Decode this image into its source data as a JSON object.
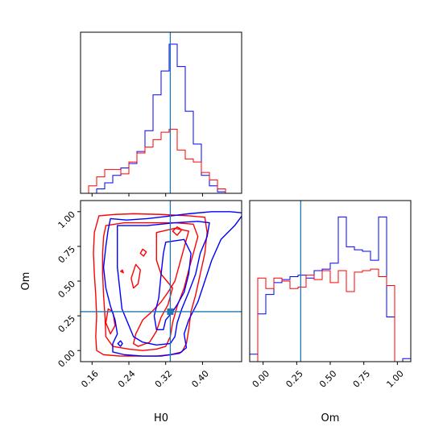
{
  "chart_data": [
    {
      "type": "histogram",
      "panel": "H0 marginal",
      "xlim": [
        0.135,
        0.485
      ],
      "ylim": [
        0,
        1.08
      ],
      "show_yticks": false,
      "truth": 0.33,
      "colors": {
        "blue": "#0000ff",
        "red": "#ff0000",
        "truth": "#1f77b4"
      },
      "bin_edges": [
        0.135,
        0.1525,
        0.17,
        0.1875,
        0.205,
        0.2225,
        0.24,
        0.2575,
        0.275,
        0.2925,
        0.31,
        0.3275,
        0.345,
        0.3625,
        0.38,
        0.3975,
        0.415,
        0.4325,
        0.45,
        0.4675,
        0.485
      ],
      "series": [
        {
          "color": "#0000ff",
          "counts": [
            0.0,
            0.0,
            0.03,
            0.07,
            0.12,
            0.17,
            0.2,
            0.28,
            0.42,
            0.66,
            0.82,
            1.0,
            0.85,
            0.55,
            0.33,
            0.12,
            0.05,
            0.01,
            0.0,
            0.0
          ]
        },
        {
          "color": "#ff0000",
          "counts": [
            0.0,
            0.05,
            0.11,
            0.16,
            0.16,
            0.13,
            0.21,
            0.27,
            0.31,
            0.36,
            0.41,
            0.43,
            0.29,
            0.23,
            0.21,
            0.14,
            0.09,
            0.03,
            0.0,
            0.0
          ]
        }
      ]
    },
    {
      "type": "contour",
      "panel": "H0 vs Om",
      "xlabel": "H0",
      "ylabel": "Om",
      "xlim": [
        0.135,
        0.485
      ],
      "ylim": [
        -0.08,
        1.08
      ],
      "xticks": [
        0.16,
        0.24,
        0.32,
        0.4
      ],
      "xtick_labels": [
        "0.16",
        "0.24",
        "0.32",
        "0.40"
      ],
      "yticks": [
        0.0,
        0.25,
        0.5,
        0.75,
        1.0
      ],
      "ytick_labels": [
        "0.00",
        "0.25",
        "0.50",
        "0.75",
        "1.00"
      ],
      "truth": {
        "x": 0.33,
        "y": 0.28
      },
      "blue_contours": [
        [
          [
            0.2,
            0.95
          ],
          [
            0.235,
            0.94
          ],
          [
            0.28,
            0.95
          ],
          [
            0.32,
            0.965
          ],
          [
            0.37,
            0.985
          ],
          [
            0.42,
            1.0
          ],
          [
            0.46,
            1.0
          ],
          [
            0.49,
            0.99
          ],
          [
            0.47,
            0.9
          ],
          [
            0.44,
            0.8
          ],
          [
            0.42,
            0.65
          ],
          [
            0.405,
            0.5
          ],
          [
            0.39,
            0.35
          ],
          [
            0.37,
            0.22
          ],
          [
            0.36,
            0.12
          ],
          [
            0.365,
            0.02
          ],
          [
            0.35,
            -0.02
          ],
          [
            0.31,
            -0.04
          ],
          [
            0.27,
            -0.04
          ],
          [
            0.23,
            -0.03
          ],
          [
            0.205,
            -0.01
          ],
          [
            0.205,
            0.05
          ],
          [
            0.215,
            0.12
          ],
          [
            0.21,
            0.22
          ],
          [
            0.2,
            0.32
          ],
          [
            0.19,
            0.45
          ],
          [
            0.185,
            0.6
          ],
          [
            0.19,
            0.75
          ],
          [
            0.195,
            0.87
          ],
          [
            0.2,
            0.95
          ]
        ],
        [
          [
            0.215,
            0.9
          ],
          [
            0.28,
            0.9
          ],
          [
            0.34,
            0.92
          ],
          [
            0.39,
            0.93
          ],
          [
            0.415,
            0.92
          ],
          [
            0.41,
            0.82
          ],
          [
            0.395,
            0.7
          ],
          [
            0.385,
            0.55
          ],
          [
            0.37,
            0.42
          ],
          [
            0.355,
            0.3
          ],
          [
            0.345,
            0.2
          ],
          [
            0.34,
            0.1
          ],
          [
            0.33,
            0.05
          ],
          [
            0.3,
            0.04
          ],
          [
            0.27,
            0.06
          ],
          [
            0.25,
            0.1
          ],
          [
            0.24,
            0.18
          ],
          [
            0.225,
            0.3
          ],
          [
            0.22,
            0.45
          ],
          [
            0.215,
            0.6
          ],
          [
            0.215,
            0.75
          ],
          [
            0.215,
            0.9
          ]
        ],
        [
          [
            0.32,
            0.78
          ],
          [
            0.36,
            0.8
          ],
          [
            0.375,
            0.7
          ],
          [
            0.37,
            0.55
          ],
          [
            0.36,
            0.42
          ],
          [
            0.345,
            0.33
          ],
          [
            0.335,
            0.28
          ],
          [
            0.32,
            0.22
          ],
          [
            0.315,
            0.15
          ],
          [
            0.3,
            0.15
          ],
          [
            0.295,
            0.25
          ],
          [
            0.305,
            0.38
          ],
          [
            0.31,
            0.55
          ],
          [
            0.315,
            0.7
          ],
          [
            0.32,
            0.78
          ]
        ],
        [
          [
            0.216,
            0.05
          ],
          [
            0.222,
            0.07
          ],
          [
            0.226,
            0.05
          ],
          [
            0.222,
            0.03
          ],
          [
            0.216,
            0.05
          ]
        ]
      ],
      "red_contours": [
        [
          [
            0.175,
            0.97
          ],
          [
            0.21,
            0.98
          ],
          [
            0.25,
            0.985
          ],
          [
            0.31,
            0.98
          ],
          [
            0.37,
            0.97
          ],
          [
            0.405,
            0.96
          ],
          [
            0.41,
            0.85
          ],
          [
            0.405,
            0.7
          ],
          [
            0.395,
            0.55
          ],
          [
            0.385,
            0.4
          ],
          [
            0.375,
            0.28
          ],
          [
            0.37,
            0.15
          ],
          [
            0.365,
            0.05
          ],
          [
            0.355,
            -0.01
          ],
          [
            0.33,
            -0.03
          ],
          [
            0.3,
            -0.04
          ],
          [
            0.26,
            -0.04
          ],
          [
            0.22,
            -0.04
          ],
          [
            0.185,
            -0.03
          ],
          [
            0.17,
            0.0
          ],
          [
            0.168,
            0.1
          ],
          [
            0.17,
            0.25
          ],
          [
            0.168,
            0.4
          ],
          [
            0.165,
            0.55
          ],
          [
            0.163,
            0.7
          ],
          [
            0.165,
            0.85
          ],
          [
            0.175,
            0.97
          ]
        ],
        [
          [
            0.19,
            0.9
          ],
          [
            0.23,
            0.92
          ],
          [
            0.29,
            0.92
          ],
          [
            0.34,
            0.92
          ],
          [
            0.38,
            0.91
          ],
          [
            0.39,
            0.82
          ],
          [
            0.38,
            0.7
          ],
          [
            0.37,
            0.58
          ],
          [
            0.36,
            0.45
          ],
          [
            0.345,
            0.32
          ],
          [
            0.335,
            0.2
          ],
          [
            0.33,
            0.1
          ],
          [
            0.32,
            0.03
          ],
          [
            0.3,
            0.01
          ],
          [
            0.27,
            0.0
          ],
          [
            0.24,
            0.01
          ],
          [
            0.205,
            0.03
          ],
          [
            0.19,
            0.1
          ],
          [
            0.188,
            0.25
          ],
          [
            0.185,
            0.4
          ],
          [
            0.183,
            0.55
          ],
          [
            0.183,
            0.7
          ],
          [
            0.185,
            0.82
          ],
          [
            0.19,
            0.9
          ]
        ],
        [
          [
            0.3,
            0.85
          ],
          [
            0.34,
            0.88
          ],
          [
            0.37,
            0.86
          ],
          [
            0.36,
            0.74
          ],
          [
            0.35,
            0.62
          ],
          [
            0.34,
            0.5
          ],
          [
            0.325,
            0.42
          ],
          [
            0.31,
            0.35
          ],
          [
            0.29,
            0.28
          ],
          [
            0.27,
            0.22
          ],
          [
            0.255,
            0.12
          ],
          [
            0.25,
            0.05
          ],
          [
            0.26,
            0.03
          ],
          [
            0.285,
            0.06
          ],
          [
            0.3,
            0.14
          ],
          [
            0.31,
            0.24
          ],
          [
            0.325,
            0.33
          ],
          [
            0.335,
            0.45
          ],
          [
            0.31,
            0.55
          ],
          [
            0.3,
            0.65
          ],
          [
            0.3,
            0.75
          ],
          [
            0.3,
            0.85
          ]
        ],
        [
          [
            0.245,
            0.52
          ],
          [
            0.255,
            0.62
          ],
          [
            0.265,
            0.58
          ],
          [
            0.26,
            0.48
          ],
          [
            0.25,
            0.45
          ],
          [
            0.245,
            0.52
          ]
        ],
        [
          [
            0.19,
            0.2
          ],
          [
            0.195,
            0.3
          ],
          [
            0.205,
            0.28
          ],
          [
            0.21,
            0.18
          ],
          [
            0.2,
            0.12
          ],
          [
            0.19,
            0.2
          ]
        ],
        [
          [
            0.335,
            0.86
          ],
          [
            0.345,
            0.89
          ],
          [
            0.355,
            0.87
          ],
          [
            0.345,
            0.83
          ],
          [
            0.335,
            0.86
          ]
        ],
        [
          [
            0.265,
            0.7
          ],
          [
            0.27,
            0.73
          ],
          [
            0.278,
            0.71
          ],
          [
            0.272,
            0.68
          ],
          [
            0.265,
            0.7
          ]
        ],
        [
          [
            0.222,
            0.57
          ],
          [
            0.226,
            0.58
          ],
          [
            0.228,
            0.56
          ],
          [
            0.222,
            0.57
          ]
        ]
      ]
    },
    {
      "type": "histogram",
      "panel": "Om marginal",
      "xlabel": "Om",
      "xlim": [
        -0.1,
        1.1
      ],
      "ylim": [
        0,
        1.08
      ],
      "show_yticks": false,
      "xticks": [
        0.0,
        0.25,
        0.5,
        0.75,
        1.0
      ],
      "xtick_labels": [
        "0.00",
        "0.25",
        "0.50",
        "0.75",
        "1.00"
      ],
      "truth": 0.28,
      "bin_edges": [
        -0.1,
        -0.04,
        0.02,
        0.08,
        0.14,
        0.2,
        0.26,
        0.32,
        0.38,
        0.44,
        0.5,
        0.56,
        0.62,
        0.68,
        0.74,
        0.8,
        0.86,
        0.92,
        0.98,
        1.04,
        1.1
      ],
      "series": [
        {
          "color": "#0000ff",
          "counts": [
            0.05,
            0.32,
            0.45,
            0.53,
            0.55,
            0.57,
            0.58,
            0.56,
            0.61,
            0.62,
            0.66,
            0.97,
            0.77,
            0.75,
            0.74,
            0.68,
            0.97,
            0.3,
            0.0,
            0.02
          ]
        },
        {
          "color": "#ff0000",
          "counts": [
            0.0,
            0.56,
            0.49,
            0.56,
            0.54,
            0.49,
            0.5,
            0.58,
            0.55,
            0.61,
            0.53,
            0.61,
            0.47,
            0.6,
            0.61,
            0.62,
            0.57,
            0.51,
            0.0,
            0.0
          ]
        }
      ]
    }
  ]
}
